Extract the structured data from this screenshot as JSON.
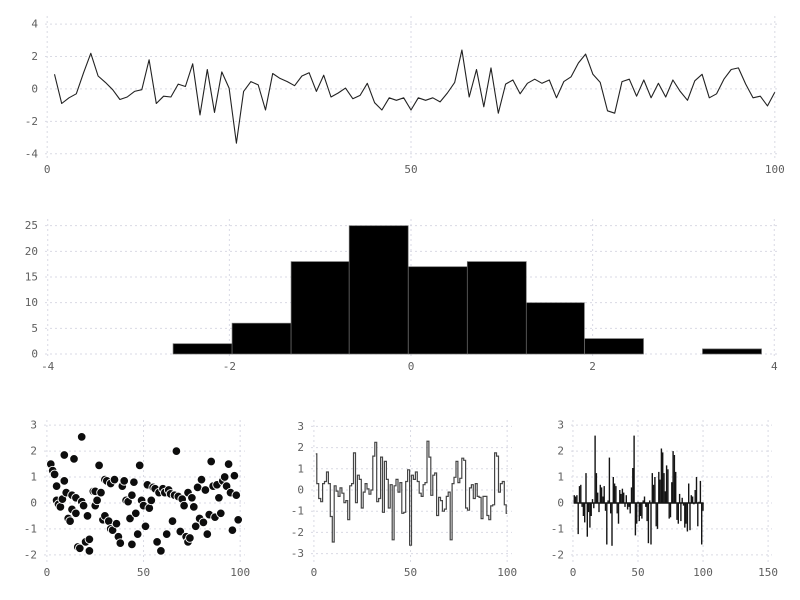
{
  "figure": {
    "background": "#ffffff"
  },
  "style": {
    "grid_color": "#d9dae4",
    "tick_label_color": "#5e5e5e",
    "line_color": "#222222",
    "step_color": "#454545",
    "marker_fill": "#0d0d0d",
    "marker_edge": "#ffffff",
    "bar_fill": "#000000",
    "bar_edge": "#6e6e6e",
    "stem_fill": "#141414"
  },
  "chart_data": [
    {
      "id": "line-plot",
      "type": "line",
      "title": "",
      "xlabel": "",
      "ylabel": "",
      "grid": true,
      "legend": "none",
      "xlim": [
        -0.3,
        100.3
      ],
      "ylim": [
        -4.2,
        4.5
      ],
      "xticks": [
        0,
        50,
        100
      ],
      "yticks": [
        -4,
        -2,
        0,
        2,
        4
      ],
      "x_start": 1,
      "x_step": 1,
      "values": [
        0.9,
        -0.9,
        -0.55,
        -0.3,
        1.0,
        2.2,
        0.8,
        0.4,
        -0.05,
        -0.65,
        -0.5,
        -0.15,
        -0.05,
        1.8,
        -0.9,
        -0.45,
        -0.5,
        0.3,
        0.15,
        1.55,
        -1.6,
        1.2,
        -1.45,
        1.05,
        0.05,
        -3.35,
        -0.15,
        0.45,
        0.25,
        -1.3,
        0.95,
        0.65,
        0.45,
        0.2,
        0.8,
        1.0,
        -0.15,
        0.85,
        -0.5,
        -0.25,
        0.05,
        -0.6,
        -0.4,
        0.35,
        -0.85,
        -1.3,
        -0.55,
        -0.7,
        -0.55,
        -1.3,
        -0.55,
        -0.7,
        -0.55,
        -0.8,
        -0.25,
        0.4,
        2.4,
        -0.5,
        1.2,
        -1.1,
        1.3,
        -1.5,
        0.3,
        0.55,
        -0.3,
        0.35,
        0.6,
        0.35,
        0.55,
        -0.55,
        0.45,
        0.75,
        1.6,
        2.15,
        0.9,
        0.4,
        -1.35,
        -1.5,
        0.45,
        0.6,
        -0.45,
        0.55,
        -0.55,
        0.35,
        -0.5,
        0.55,
        -0.15,
        -0.7,
        0.5,
        0.9,
        -0.55,
        -0.3,
        0.6,
        1.2,
        1.3,
        0.3,
        -0.55,
        -0.45,
        -1.05,
        -0.2
      ]
    },
    {
      "id": "histogram",
      "type": "bar",
      "title": "",
      "xlabel": "",
      "ylabel": "",
      "grid": true,
      "legend": "none",
      "xlim": [
        -4.03,
        4.03
      ],
      "ylim": [
        0,
        26.3
      ],
      "xticks": [
        -4,
        -2,
        0,
        2,
        4
      ],
      "yticks": [
        0,
        5,
        10,
        15,
        20,
        25
      ],
      "bin_edges": [
        -2.62,
        -1.97,
        -1.32,
        -0.68,
        -0.03,
        0.62,
        1.27,
        1.91,
        2.56,
        3.21,
        3.86
      ],
      "counts": [
        2,
        6,
        18,
        25,
        17,
        18,
        10,
        3,
        0,
        1
      ]
    },
    {
      "id": "scatter-plot",
      "type": "scatter",
      "title": "",
      "xlabel": "",
      "ylabel": "",
      "grid": true,
      "legend": "none",
      "xlim": [
        -1.5,
        102.5
      ],
      "ylim": [
        -2.2,
        3.2
      ],
      "xticks": [
        0,
        50,
        100
      ],
      "yticks": [
        -2,
        -1,
        0,
        1,
        2,
        3
      ],
      "points": [
        [
          2,
          1.5
        ],
        [
          3,
          1.25
        ],
        [
          4,
          1.1
        ],
        [
          5,
          0.65
        ],
        [
          5,
          0.1
        ],
        [
          6,
          -0.05
        ],
        [
          7,
          -0.15
        ],
        [
          8,
          0.15
        ],
        [
          9,
          1.85
        ],
        [
          9,
          0.85
        ],
        [
          10,
          0.4
        ],
        [
          11,
          -0.6
        ],
        [
          12,
          -0.7
        ],
        [
          13,
          0.3
        ],
        [
          13,
          -0.25
        ],
        [
          14,
          1.7
        ],
        [
          15,
          0.2
        ],
        [
          15,
          -0.4
        ],
        [
          16,
          -1.7
        ],
        [
          17,
          -1.75
        ],
        [
          18,
          2.55
        ],
        [
          18,
          0.05
        ],
        [
          19,
          -0.1
        ],
        [
          20,
          -1.5
        ],
        [
          21,
          -0.5
        ],
        [
          22,
          -1.4
        ],
        [
          22,
          -1.85
        ],
        [
          24,
          0.45
        ],
        [
          25,
          0.45
        ],
        [
          25,
          -0.1
        ],
        [
          26,
          0.1
        ],
        [
          27,
          1.45
        ],
        [
          28,
          0.4
        ],
        [
          29,
          -0.65
        ],
        [
          30,
          -0.5
        ],
        [
          30,
          0.9
        ],
        [
          31,
          0.85
        ],
        [
          32,
          -0.7
        ],
        [
          33,
          0.75
        ],
        [
          33,
          -1.0
        ],
        [
          34,
          -1.05
        ],
        [
          35,
          0.9
        ],
        [
          36,
          -0.8
        ],
        [
          37,
          -1.3
        ],
        [
          38,
          -1.55
        ],
        [
          39,
          0.65
        ],
        [
          40,
          0.85
        ],
        [
          41,
          0.1
        ],
        [
          42,
          0.05
        ],
        [
          43,
          -0.6
        ],
        [
          44,
          0.3
        ],
        [
          44,
          -1.6
        ],
        [
          45,
          0.8
        ],
        [
          46,
          -0.4
        ],
        [
          47,
          -1.2
        ],
        [
          48,
          1.45
        ],
        [
          49,
          0.1
        ],
        [
          50,
          -0.1
        ],
        [
          51,
          -0.9
        ],
        [
          52,
          0.7
        ],
        [
          53,
          -0.2
        ],
        [
          54,
          0.1
        ],
        [
          55,
          0.6
        ],
        [
          56,
          0.55
        ],
        [
          57,
          -1.5
        ],
        [
          58,
          0.4
        ],
        [
          59,
          -1.85
        ],
        [
          60,
          0.55
        ],
        [
          61,
          0.4
        ],
        [
          62,
          -1.2
        ],
        [
          63,
          0.5
        ],
        [
          64,
          0.35
        ],
        [
          65,
          -0.7
        ],
        [
          66,
          0.3
        ],
        [
          67,
          2.0
        ],
        [
          68,
          0.25
        ],
        [
          69,
          -1.1
        ],
        [
          70,
          0.15
        ],
        [
          71,
          -0.1
        ],
        [
          72,
          -1.3
        ],
        [
          73,
          0.4
        ],
        [
          73,
          -1.5
        ],
        [
          74,
          -1.35
        ],
        [
          75,
          0.2
        ],
        [
          76,
          -0.15
        ],
        [
          77,
          -0.9
        ],
        [
          78,
          0.6
        ],
        [
          79,
          -0.6
        ],
        [
          80,
          0.9
        ],
        [
          81,
          -0.75
        ],
        [
          82,
          0.5
        ],
        [
          83,
          -1.2
        ],
        [
          84,
          -0.45
        ],
        [
          85,
          1.6
        ],
        [
          86,
          0.65
        ],
        [
          87,
          -0.55
        ],
        [
          88,
          0.7
        ],
        [
          89,
          0.2
        ],
        [
          90,
          -0.4
        ],
        [
          91,
          0.85
        ],
        [
          92,
          1.0
        ],
        [
          93,
          0.65
        ],
        [
          94,
          1.5
        ],
        [
          95,
          0.4
        ],
        [
          96,
          -1.05
        ],
        [
          97,
          1.05
        ],
        [
          98,
          0.3
        ],
        [
          99,
          -0.65
        ]
      ]
    },
    {
      "id": "step-plot",
      "type": "step",
      "title": "",
      "xlabel": "",
      "ylabel": "",
      "grid": true,
      "legend": "none",
      "xlim": [
        -1.5,
        102.5
      ],
      "ylim": [
        -3.3,
        3.3
      ],
      "xticks": [
        0,
        50,
        100
      ],
      "yticks": [
        -3,
        -2,
        -1,
        0,
        1,
        2,
        3
      ],
      "x_start": 1,
      "x_step": 1,
      "values": [
        1.7,
        0.3,
        -0.4,
        -0.55,
        0.3,
        0.4,
        0.85,
        0.3,
        -1.25,
        -2.45,
        0.2,
        -0.05,
        -0.3,
        0.1,
        -0.15,
        -0.6,
        -0.5,
        -1.4,
        0.2,
        0.3,
        1.75,
        -0.6,
        0.7,
        0.5,
        -0.85,
        -0.1,
        0.3,
        0.05,
        -0.2,
        0.0,
        1.6,
        2.25,
        -0.55,
        -0.4,
        1.55,
        -1.05,
        1.35,
        0.5,
        -0.85,
        0.25,
        -2.35,
        0.2,
        0.5,
        -0.1,
        0.35,
        -1.1,
        -1.05,
        0.4,
        0.95,
        -2.6,
        0.7,
        0.5,
        0.85,
        0.4,
        -0.15,
        -0.3,
        0.25,
        0.35,
        2.3,
        1.55,
        -0.25,
        0.7,
        0.8,
        -1.2,
        -0.35,
        -0.5,
        -1.0,
        -0.9,
        -0.3,
        -0.1,
        -2.35,
        0.3,
        0.6,
        1.35,
        0.35,
        0.55,
        1.5,
        1.4,
        -0.85,
        -0.95,
        0.1,
        0.25,
        -0.4,
        0.3,
        -0.3,
        -0.35,
        -1.35,
        -0.3,
        -0.3,
        -1.2,
        -1.4,
        -0.75,
        -0.7,
        1.75,
        1.6,
        -0.1,
        0.3,
        0.4,
        -0.7,
        -1.1
      ]
    },
    {
      "id": "stem-plot",
      "type": "stem",
      "title": "",
      "xlabel": "",
      "ylabel": "",
      "grid": true,
      "legend": "none",
      "xlim": [
        -1.5,
        153
      ],
      "ylim": [
        -2.2,
        3.2
      ],
      "xticks": [
        0,
        50,
        100,
        150
      ],
      "yticks": [
        -2,
        -1,
        0,
        1,
        2,
        3
      ],
      "x_start": 1,
      "x_step": 1,
      "values": [
        0.3,
        0.25,
        0.3,
        -1.2,
        0.65,
        0.7,
        -0.15,
        -0.5,
        -0.75,
        1.15,
        -1.3,
        -0.35,
        -0.95,
        -0.5,
        0.15,
        -0.2,
        2.6,
        1.15,
        0.4,
        -0.35,
        0.7,
        0.6,
        0.25,
        0.65,
        -0.3,
        -1.6,
        0.1,
        1.75,
        -0.4,
        -1.65,
        1.0,
        0.75,
        0.65,
        -0.4,
        -0.8,
        0.5,
        0.35,
        0.55,
        0.4,
        -0.15,
        0.3,
        -0.25,
        -0.15,
        -0.4,
        0.6,
        1.35,
        2.6,
        -1.25,
        -0.8,
        0.05,
        -0.7,
        -0.5,
        -0.6,
        0.1,
        0.25,
        -0.15,
        -0.7,
        -1.55,
        0.1,
        -1.6,
        1.15,
        0.7,
        1.0,
        -0.9,
        -1.0,
        1.2,
        0.9,
        2.1,
        1.95,
        1.15,
        0.45,
        1.45,
        1.3,
        -0.6,
        -0.55,
        0.8,
        2.0,
        1.85,
        1.2,
        -0.65,
        -0.8,
        0.35,
        -0.7,
        0.2,
        -0.1,
        -0.95,
        -0.8,
        -1.1,
        0.75,
        -1.05,
        0.3,
        0.25,
        -0.05,
        0.5,
        1.0,
        -0.9,
        0.05,
        0.85,
        -1.6,
        -0.3
      ]
    }
  ]
}
